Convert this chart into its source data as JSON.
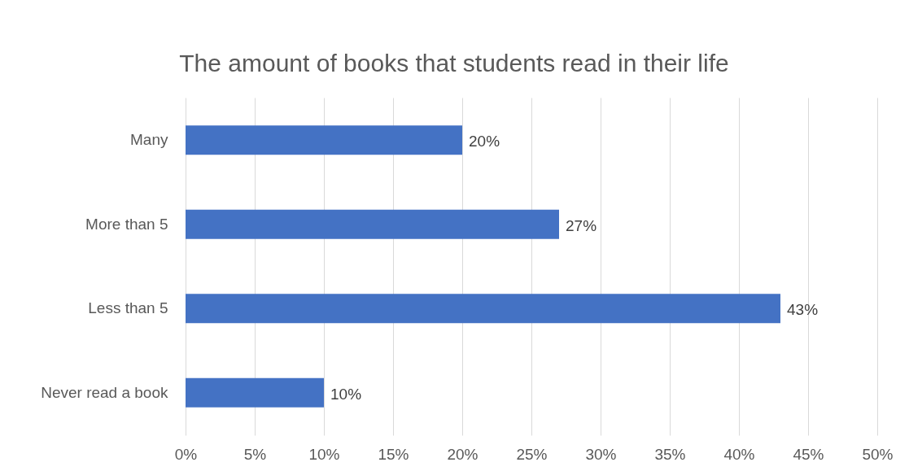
{
  "chart_data": {
    "type": "bar",
    "orientation": "horizontal",
    "title": "The amount of books that students read in their life",
    "categories": [
      "Many",
      "More than 5",
      "Less than 5",
      "Never read a book"
    ],
    "values": [
      20,
      27,
      43,
      10
    ],
    "color": "#4472c4",
    "value_labels": [
      "20%",
      "27%",
      "43%",
      "10%"
    ],
    "xlim": [
      0,
      50
    ],
    "xticks": [
      {
        "value": 0,
        "label": "0%"
      },
      {
        "value": 5,
        "label": "5%"
      },
      {
        "value": 10,
        "label": "10%"
      },
      {
        "value": 15,
        "label": "15%"
      },
      {
        "value": 20,
        "label": "20%"
      },
      {
        "value": 25,
        "label": "25%"
      },
      {
        "value": 30,
        "label": "30%"
      },
      {
        "value": 35,
        "label": "35%"
      },
      {
        "value": 40,
        "label": "40%"
      },
      {
        "value": 45,
        "label": "45%"
      },
      {
        "value": 50,
        "label": "50%"
      }
    ],
    "grid": "x"
  }
}
